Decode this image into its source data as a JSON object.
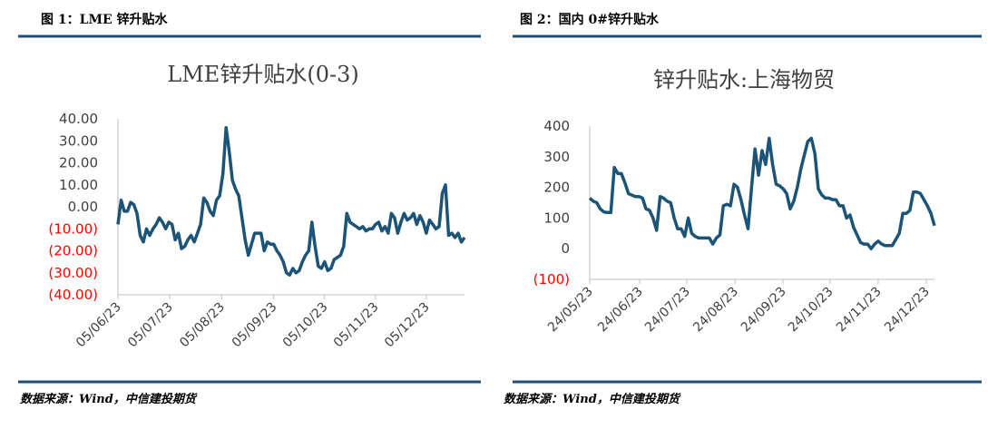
{
  "captions": [
    "图 1：LME 锌升贴水",
    "图 2：国内 0#锌升贴水"
  ],
  "sources": [
    "数据来源：Wind，中信建投期货",
    "数据来源：Wind，中信建投期货"
  ],
  "chart_data": [
    {
      "type": "line",
      "title": "LME锌升贴水(0-3)",
      "color": "#1b5478",
      "tick_color": "#404040",
      "negative_tick_color": "#ff0000",
      "values": [
        -8,
        3,
        -2,
        -2,
        2,
        1,
        -3,
        -13,
        -16,
        -10,
        -13,
        -10,
        -8,
        -5,
        -7,
        -10,
        -7,
        -8,
        -15,
        -12,
        -19,
        -18,
        -15,
        -13,
        -16,
        -12,
        -8,
        4,
        2,
        -2,
        -4,
        3,
        5,
        15,
        36,
        25,
        12,
        8,
        5,
        -5,
        -15,
        -22,
        -17,
        -12,
        -12,
        -12,
        -20,
        -16,
        -17,
        -17,
        -20,
        -22,
        -25,
        -30,
        -31,
        -28,
        -30,
        -29,
        -25,
        -22,
        -20,
        -7,
        -18,
        -27,
        -28,
        -25,
        -29,
        -28,
        -24,
        -23,
        -22,
        -18,
        -3,
        -7,
        -8,
        -9,
        -10,
        -9,
        -11,
        -10,
        -10,
        -8,
        -7,
        -11,
        -9,
        -12,
        -3,
        -5,
        -12,
        -7,
        -3,
        -6,
        -5,
        -3,
        -8,
        -4,
        -7,
        -12,
        -6,
        -8,
        -10,
        -9,
        6,
        10,
        -13,
        -12,
        -14,
        -12,
        -16,
        -14
      ],
      "xlim": [
        0,
        109
      ],
      "xticks": [
        {
          "value": 0,
          "label": "05/06/23"
        },
        {
          "value": 16.3,
          "label": "05/07/23"
        },
        {
          "value": 32.6,
          "label": "05/08/23"
        },
        {
          "value": 49,
          "label": "05/09/23"
        },
        {
          "value": 65,
          "label": "05/10/23"
        },
        {
          "value": 81,
          "label": "05/11/23"
        },
        {
          "value": 97,
          "label": "05/12/23"
        }
      ],
      "ylim": [
        -40,
        40
      ],
      "yticks": [
        {
          "value": 40,
          "label": "40.00"
        },
        {
          "value": 30,
          "label": "30.00"
        },
        {
          "value": 20,
          "label": "20.00"
        },
        {
          "value": 10,
          "label": "10.00"
        },
        {
          "value": 0,
          "label": "0.00"
        },
        {
          "value": -10,
          "label": "(10.00)"
        },
        {
          "value": -20,
          "label": "(20.00)"
        },
        {
          "value": -30,
          "label": "(30.00)"
        },
        {
          "value": -40,
          "label": "(40.00)"
        }
      ]
    },
    {
      "type": "line",
      "title": "锌升贴水:上海物贸",
      "color": "#1b5478",
      "tick_color": "#404040",
      "negative_tick_color": "#ff0000",
      "values": [
        165,
        155,
        150,
        130,
        120,
        118,
        118,
        265,
        245,
        245,
        215,
        180,
        175,
        170,
        170,
        165,
        130,
        125,
        100,
        60,
        170,
        165,
        155,
        150,
        100,
        65,
        65,
        40,
        100,
        50,
        40,
        35,
        35,
        35,
        35,
        15,
        35,
        45,
        140,
        145,
        140,
        210,
        200,
        160,
        110,
        65,
        200,
        325,
        240,
        320,
        275,
        360,
        275,
        210,
        205,
        195,
        180,
        130,
        155,
        200,
        260,
        305,
        350,
        360,
        310,
        195,
        175,
        165,
        165,
        160,
        160,
        140,
        140,
        100,
        110,
        70,
        45,
        20,
        15,
        15,
        0,
        15,
        25,
        15,
        10,
        10,
        10,
        30,
        50,
        115,
        115,
        125,
        185,
        185,
        180,
        160,
        140,
        115,
        75
      ],
      "xlim": [
        0,
        98
      ],
      "xticks": [
        {
          "value": 0,
          "label": "24/05/23"
        },
        {
          "value": 14.2,
          "label": "24/06/23"
        },
        {
          "value": 27.6,
          "label": "24/07/23"
        },
        {
          "value": 41.3,
          "label": "24/08/23"
        },
        {
          "value": 54.9,
          "label": "24/09/23"
        },
        {
          "value": 68.3,
          "label": "24/10/23"
        },
        {
          "value": 82,
          "label": "24/11/23"
        },
        {
          "value": 95.7,
          "label": "24/12/23"
        }
      ],
      "ylim": [
        -100,
        400
      ],
      "yticks": [
        400,
        300,
        200,
        100,
        0,
        {
          "value": -100,
          "label": "(100)"
        }
      ]
    }
  ]
}
